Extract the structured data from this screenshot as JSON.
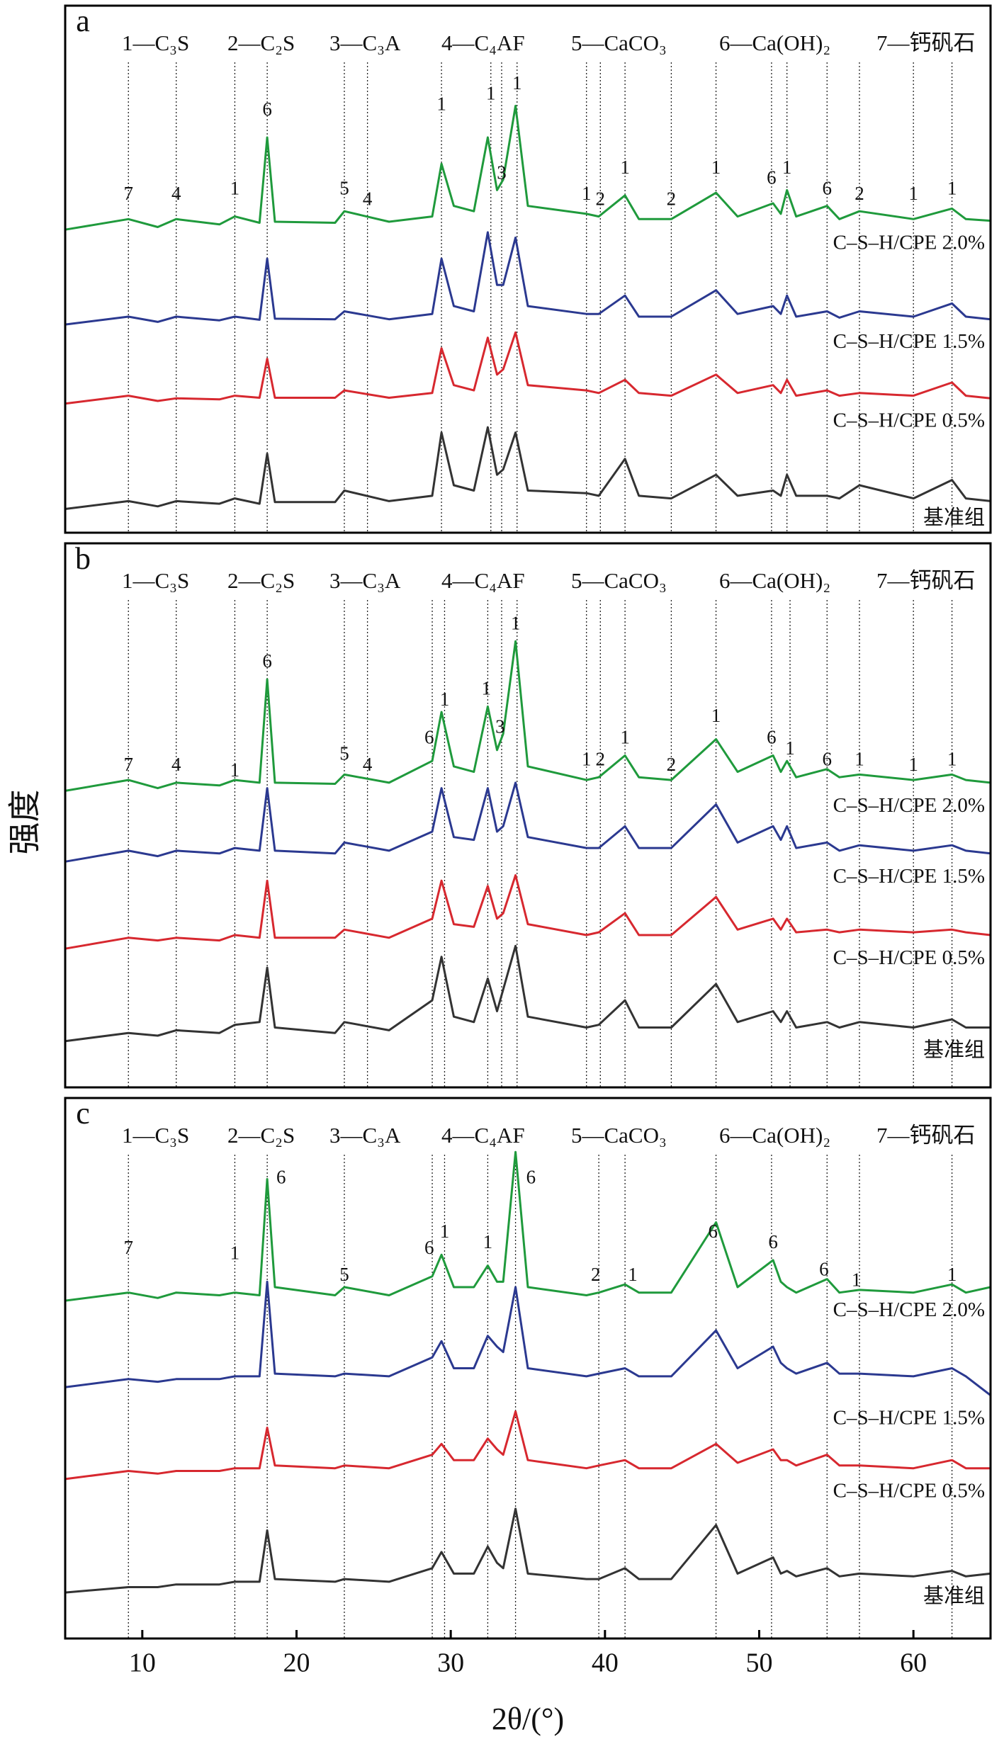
{
  "chart_data": [
    {
      "type": "line",
      "panel_label": "a",
      "legend_items": [
        "1—C₃S",
        "2—C₂S",
        "3—C₃A",
        "4—C₄AF",
        "5—CaCO₃",
        "6—Ca(OH)₂",
        "7—钙矾石"
      ],
      "xlim": [
        5,
        65
      ],
      "ylim": [
        0,
        100
      ],
      "x": [
        5,
        9.1,
        11,
        12.2,
        15,
        16,
        17.6,
        18.1,
        18.6,
        22.5,
        23.1,
        26,
        28.8,
        29.4,
        30.2,
        31.5,
        32.4,
        33.0,
        33.4,
        34.2,
        35.0,
        38.8,
        39.6,
        41.3,
        42.2,
        44.3,
        47.2,
        48.6,
        50.9,
        51.4,
        51.8,
        52.4,
        54.4,
        55.2,
        56.5,
        60,
        62.5,
        63.4,
        65
      ],
      "series": [
        {
          "name": "C–S–H/CPE 2.0%",
          "color": "#1f9a3c",
          "values": [
            57.5,
            59.5,
            58,
            59.5,
            58.5,
            60,
            58.8,
            75,
            59,
            58.8,
            61,
            59,
            60,
            70,
            62,
            61,
            75,
            65,
            67,
            81,
            62,
            60.5,
            60,
            64,
            59.5,
            59.5,
            64.5,
            60,
            62.5,
            60.5,
            65,
            60,
            62,
            59.5,
            61,
            59.5,
            61.5,
            59.5,
            59.2
          ]
        },
        {
          "name": "C–S–H/CPE 1.5%",
          "color": "#2b3990",
          "values": [
            39.5,
            41,
            40,
            41,
            40.3,
            41,
            40.4,
            52,
            40.6,
            40.5,
            42,
            40.5,
            41.5,
            52,
            43,
            42,
            57,
            47,
            47,
            56,
            43,
            41.5,
            41.5,
            45,
            41,
            41,
            46,
            41.5,
            43,
            41.5,
            45,
            41,
            42,
            40.8,
            42,
            41,
            43.5,
            41,
            40.5
          ]
        },
        {
          "name": "C–S–H/CPE 0.5%",
          "color": "#d7282f",
          "values": [
            24.5,
            26,
            25,
            25.5,
            25.3,
            26,
            25.6,
            33,
            25.6,
            25.6,
            27,
            25.6,
            26.5,
            35,
            28,
            27,
            37,
            30,
            31,
            38,
            28,
            27,
            26.5,
            29,
            26.5,
            26,
            30,
            26.5,
            28,
            26.5,
            29,
            26,
            27,
            26,
            26.5,
            26,
            28.5,
            26,
            25.5
          ]
        },
        {
          "name": "基准组",
          "color": "#333333",
          "values": [
            4.5,
            6,
            5,
            6,
            5.5,
            6.5,
            5.5,
            15,
            5.8,
            5.8,
            8,
            6,
            7,
            19,
            9,
            8,
            20,
            11,
            12,
            19,
            8,
            7.5,
            7,
            14,
            7,
            6.5,
            11,
            7,
            8,
            7,
            11,
            7,
            7,
            6.5,
            9,
            6.5,
            10,
            6.5,
            6
          ]
        }
      ],
      "reference_lines": [
        9.1,
        12.2,
        16,
        18.1,
        23.1,
        24.6,
        29.4,
        32.6,
        33.3,
        34.3,
        38.8,
        39.7,
        41.3,
        44.3,
        47.2,
        50.8,
        51.8,
        54.4,
        56.5,
        60,
        62.5
      ],
      "annotations": [
        {
          "x": 9.1,
          "y": 64,
          "text": "7"
        },
        {
          "x": 12.2,
          "y": 64,
          "text": "4"
        },
        {
          "x": 16,
          "y": 65,
          "text": "1"
        },
        {
          "x": 18.1,
          "y": 80,
          "text": "6"
        },
        {
          "x": 23.1,
          "y": 65,
          "text": "5"
        },
        {
          "x": 24.6,
          "y": 63,
          "text": "4"
        },
        {
          "x": 29.4,
          "y": 81,
          "text": "1"
        },
        {
          "x": 32.6,
          "y": 83,
          "text": "1"
        },
        {
          "x": 33.3,
          "y": 68,
          "text": "3"
        },
        {
          "x": 34.3,
          "y": 85,
          "text": "1"
        },
        {
          "x": 38.8,
          "y": 64,
          "text": "1"
        },
        {
          "x": 39.7,
          "y": 63,
          "text": "2"
        },
        {
          "x": 41.3,
          "y": 69,
          "text": "1"
        },
        {
          "x": 44.3,
          "y": 63,
          "text": "2"
        },
        {
          "x": 47.2,
          "y": 69,
          "text": "1"
        },
        {
          "x": 50.8,
          "y": 67,
          "text": "6"
        },
        {
          "x": 51.8,
          "y": 69,
          "text": "1"
        },
        {
          "x": 54.4,
          "y": 65,
          "text": "6"
        },
        {
          "x": 56.5,
          "y": 64,
          "text": "2"
        },
        {
          "x": 60,
          "y": 64,
          "text": "1"
        },
        {
          "x": 62.5,
          "y": 65,
          "text": "1"
        }
      ]
    },
    {
      "type": "line",
      "panel_label": "b",
      "ylabel": "强度",
      "legend_items": [
        "1—C₃S",
        "2—C₂S",
        "3—C₃A",
        "4—C₄AF",
        "5—CaCO₃",
        "6—Ca(OH)₂",
        "7—钙矾石"
      ],
      "xlim": [
        5,
        65
      ],
      "ylim": [
        0,
        100
      ],
      "x": [
        5,
        9.1,
        11,
        12.2,
        15,
        16,
        17.6,
        18.1,
        18.6,
        22.5,
        23.1,
        26,
        28.8,
        29.4,
        30.2,
        31.5,
        32.4,
        33.0,
        33.4,
        34.2,
        35.0,
        38.8,
        39.6,
        41.3,
        42.2,
        44.3,
        47.2,
        48.6,
        50.9,
        51.4,
        51.8,
        52.4,
        54.4,
        55.2,
        56.5,
        60,
        62.5,
        63.4,
        65
      ],
      "series": [
        {
          "name": "C–S–H/CPE 2.0%",
          "color": "#1f9a3c",
          "values": [
            54.5,
            56.5,
            55,
            56,
            55.5,
            56.5,
            56,
            75,
            56,
            55.8,
            57.5,
            56,
            60,
            69,
            59,
            58,
            70,
            62,
            65,
            82,
            59,
            56.5,
            57,
            61,
            57,
            56.5,
            64,
            58,
            61,
            58,
            60,
            57,
            58.5,
            57,
            57.5,
            56.5,
            57.5,
            56.5,
            56
          ]
        },
        {
          "name": "C–S–H/CPE 1.5%",
          "color": "#2b3990",
          "values": [
            41.5,
            43.5,
            42.5,
            43.5,
            43,
            44,
            43.5,
            55,
            43.5,
            43,
            45,
            43.5,
            47,
            55,
            46,
            45.5,
            55,
            47,
            48,
            56,
            46,
            44,
            44,
            48,
            44,
            44,
            52,
            45,
            48,
            45.5,
            48,
            44,
            45,
            43.5,
            44.5,
            43.5,
            44.5,
            43.5,
            43
          ]
        },
        {
          "name": "C–S–H/CPE 0.5%",
          "color": "#d7282f",
          "values": [
            25.5,
            27.5,
            27,
            27.5,
            27,
            28,
            27.5,
            38,
            27.5,
            27.5,
            29,
            27.5,
            31,
            38,
            30,
            29.5,
            37,
            31,
            32,
            39,
            30,
            28,
            28.5,
            32,
            28,
            28,
            35,
            29,
            31,
            29,
            31,
            28.5,
            29,
            28.5,
            29,
            28.5,
            29,
            28.5,
            28
          ]
        },
        {
          "name": "基准组",
          "color": "#333333",
          "values": [
            8.5,
            10,
            9.5,
            10.5,
            10,
            11.5,
            12,
            22,
            11,
            10,
            12,
            10.5,
            16,
            24,
            13,
            12,
            20,
            14,
            18,
            26,
            13,
            11,
            11.5,
            16,
            11,
            11,
            19,
            12,
            14,
            12,
            14,
            11,
            12,
            11,
            12,
            11,
            12.5,
            11,
            11
          ]
        }
      ],
      "reference_lines": [
        9.1,
        12.2,
        16,
        18.1,
        23.1,
        24.6,
        28.8,
        29.6,
        32.4,
        33.3,
        34.3,
        38.8,
        39.7,
        41.3,
        44.3,
        47.2,
        50.8,
        52,
        54.4,
        56.5,
        60,
        62.5
      ],
      "annotations": [
        {
          "x": 9.1,
          "y": 59,
          "text": "7"
        },
        {
          "x": 12.2,
          "y": 59,
          "text": "4"
        },
        {
          "x": 16,
          "y": 58,
          "text": "1"
        },
        {
          "x": 18.1,
          "y": 78,
          "text": "6"
        },
        {
          "x": 23.1,
          "y": 61,
          "text": "5"
        },
        {
          "x": 24.6,
          "y": 59,
          "text": "4"
        },
        {
          "x": 28.6,
          "y": 64,
          "text": "6"
        },
        {
          "x": 29.6,
          "y": 71,
          "text": "1"
        },
        {
          "x": 32.3,
          "y": 73,
          "text": "1"
        },
        {
          "x": 33.2,
          "y": 66,
          "text": "3"
        },
        {
          "x": 34.2,
          "y": 85,
          "text": "1"
        },
        {
          "x": 38.8,
          "y": 60,
          "text": "1"
        },
        {
          "x": 39.7,
          "y": 60,
          "text": "2"
        },
        {
          "x": 41.3,
          "y": 64,
          "text": "1"
        },
        {
          "x": 44.3,
          "y": 59,
          "text": "2"
        },
        {
          "x": 47.2,
          "y": 68,
          "text": "1"
        },
        {
          "x": 50.8,
          "y": 64,
          "text": "6"
        },
        {
          "x": 52,
          "y": 62,
          "text": "1"
        },
        {
          "x": 54.4,
          "y": 60,
          "text": "6"
        },
        {
          "x": 56.5,
          "y": 60,
          "text": "1"
        },
        {
          "x": 60,
          "y": 59,
          "text": "1"
        },
        {
          "x": 62.5,
          "y": 60,
          "text": "1"
        }
      ]
    },
    {
      "type": "line",
      "panel_label": "c",
      "xlabel": "2θ/(°)",
      "legend_items": [
        "1—C₃S",
        "2—C₂S",
        "3—C₃A",
        "4—C₄AF",
        "5—CaCO₃",
        "6—Ca(OH)₂",
        "7—钙矾石"
      ],
      "xlim": [
        5,
        65
      ],
      "ylim": [
        0,
        100
      ],
      "xticks": [
        10,
        20,
        30,
        40,
        50,
        60
      ],
      "x": [
        5,
        9.1,
        11,
        12.2,
        15,
        16,
        17.6,
        18.1,
        18.6,
        22.5,
        23.1,
        26,
        28.8,
        29.4,
        30.2,
        31.5,
        32.4,
        33.0,
        33.4,
        34.2,
        35.0,
        38.8,
        39.6,
        41.3,
        42.2,
        44.3,
        47.2,
        48.6,
        50.9,
        51.4,
        51.8,
        52.4,
        54.4,
        55.2,
        56.5,
        60,
        62.5,
        63.4,
        65
      ],
      "series": [
        {
          "name": "C–S–H/CPE 2.0%",
          "color": "#1f9a3c",
          "values": [
            62.5,
            64,
            63,
            64,
            63.5,
            64,
            63.5,
            85,
            65,
            63.5,
            65,
            63.5,
            67,
            71,
            65,
            65,
            69,
            66,
            66,
            90,
            65,
            63.5,
            64,
            65.5,
            64,
            64,
            77,
            65,
            70,
            66,
            65,
            64,
            66.5,
            64,
            64.5,
            64,
            65.5,
            64,
            65
          ]
        },
        {
          "name": "C–S–H/CPE 1.5%",
          "color": "#2b3990",
          "values": [
            46.5,
            48,
            47.5,
            48,
            48,
            48.5,
            48.5,
            66,
            49,
            48.5,
            49,
            48.5,
            52,
            55,
            50,
            50,
            56,
            54,
            53,
            65,
            50,
            48.5,
            49,
            50,
            48.5,
            48.5,
            57,
            50,
            54,
            51,
            50,
            49,
            51,
            49,
            49,
            48.5,
            50,
            48.5,
            45
          ]
        },
        {
          "name": "C–S–H/CPE 0.5%",
          "color": "#d7282f",
          "values": [
            29.5,
            31,
            30.5,
            31,
            31,
            31.5,
            31.5,
            39,
            32,
            31.5,
            32,
            31.5,
            34,
            36,
            33,
            33,
            37,
            35,
            34,
            42,
            33,
            31.5,
            32,
            33,
            31.5,
            31.5,
            36,
            32.5,
            35,
            33,
            33,
            32,
            34,
            32,
            32,
            31.5,
            33,
            31.5,
            31.5
          ]
        },
        {
          "name": "基准组",
          "color": "#333333",
          "values": [
            8.5,
            9.5,
            9.5,
            10,
            10,
            10.5,
            10.5,
            20,
            11,
            10.5,
            11,
            10.5,
            13,
            16,
            12,
            12,
            17,
            14,
            13,
            24,
            12,
            11,
            11,
            13,
            11,
            11,
            21,
            12,
            15,
            12,
            12.5,
            11.5,
            13,
            11.5,
            12,
            11.5,
            12.5,
            11.5,
            12
          ]
        }
      ],
      "reference_lines": [
        9.1,
        16,
        18.1,
        23.1,
        28.8,
        29.6,
        32.4,
        34.2,
        39.6,
        41.3,
        47.2,
        50.8,
        54.4,
        56.5,
        62.5
      ],
      "annotations": [
        {
          "x": 9.1,
          "y": 72,
          "text": "7"
        },
        {
          "x": 16,
          "y": 71,
          "text": "1"
        },
        {
          "x": 19,
          "y": 85,
          "text": "6"
        },
        {
          "x": 23.1,
          "y": 67,
          "text": "5"
        },
        {
          "x": 28.6,
          "y": 72,
          "text": "6"
        },
        {
          "x": 29.6,
          "y": 75,
          "text": "1"
        },
        {
          "x": 32.4,
          "y": 73,
          "text": "1"
        },
        {
          "x": 35.2,
          "y": 85,
          "text": "6"
        },
        {
          "x": 39.4,
          "y": 67,
          "text": "2"
        },
        {
          "x": 41.8,
          "y": 67,
          "text": "1"
        },
        {
          "x": 47,
          "y": 75,
          "text": "6"
        },
        {
          "x": 50.9,
          "y": 73,
          "text": "6"
        },
        {
          "x": 54.2,
          "y": 68,
          "text": "6"
        },
        {
          "x": 56.3,
          "y": 66,
          "text": "1"
        },
        {
          "x": 62.5,
          "y": 67,
          "text": "1"
        }
      ]
    }
  ]
}
